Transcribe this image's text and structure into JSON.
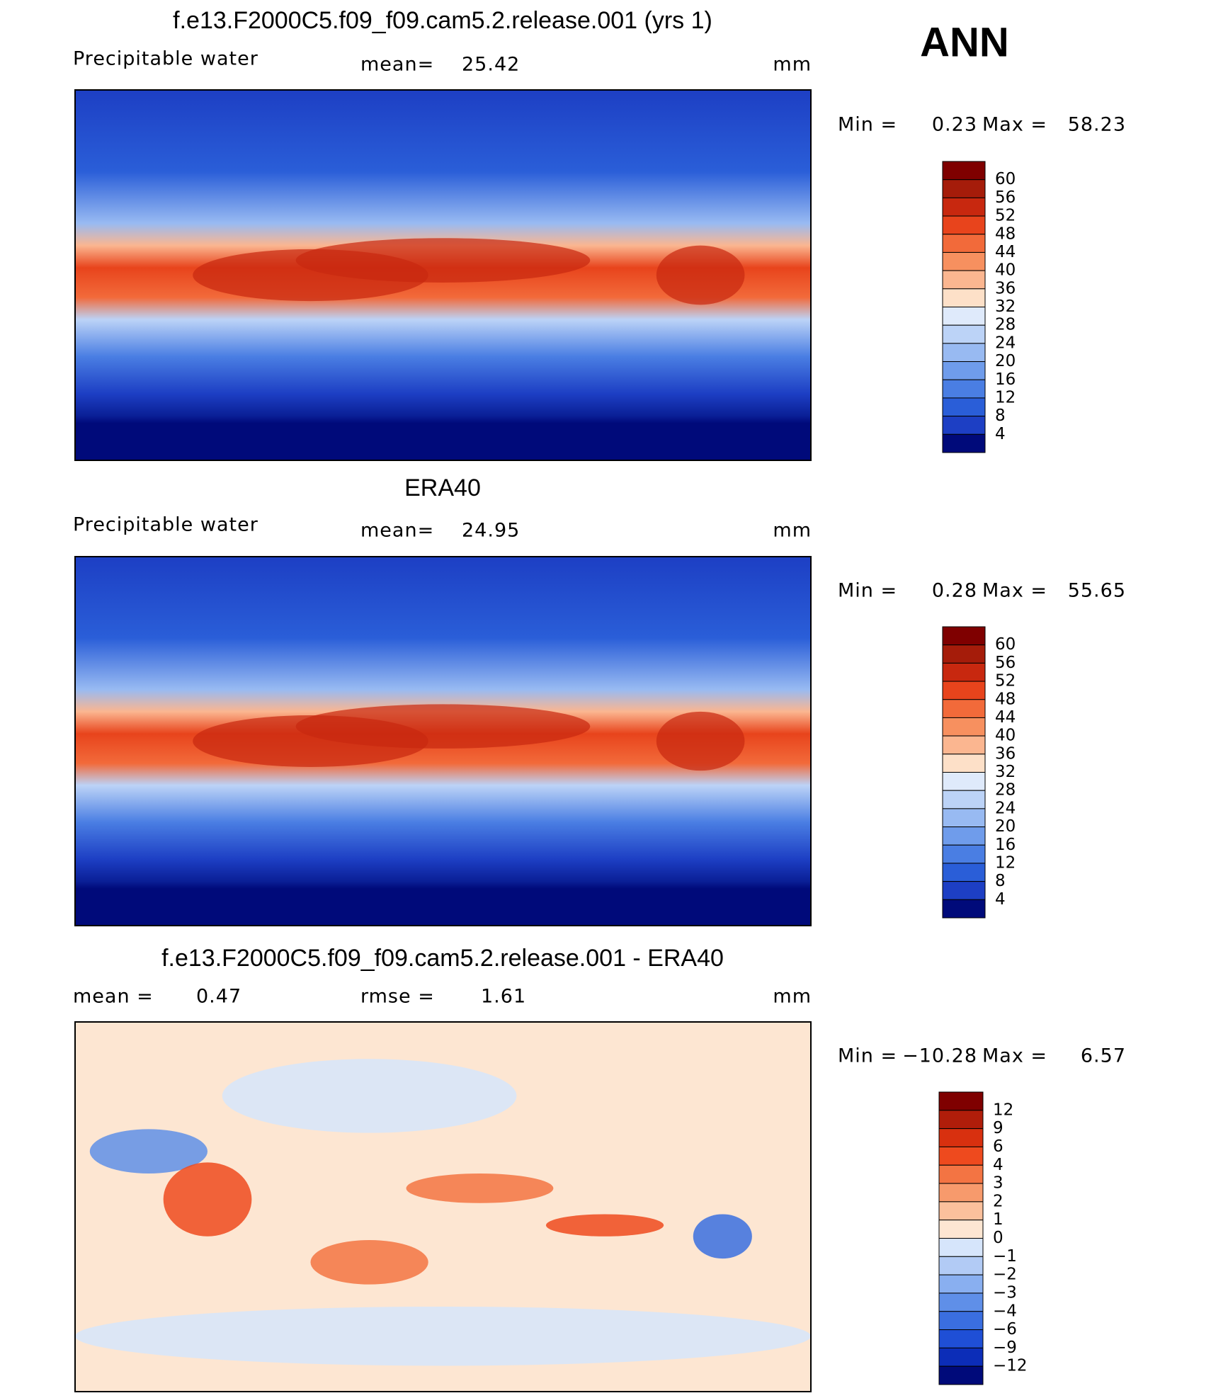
{
  "header": {
    "season": "ANN"
  },
  "panels": [
    {
      "title": "f.e13.F2000C5.f09_f09.cam5.2.release.001 (yrs 1)",
      "left_label": "Precipitable  water",
      "stat1_label": "mean=",
      "stat1_value": "25.42",
      "units": "mm",
      "min_label": "Min  =",
      "min_value": "0.23",
      "max_label": "Max  =",
      "max_value": "58.23",
      "colorbar": {
        "colors": [
          "#7f0000",
          "#a51c0a",
          "#c8280f",
          "#e8441c",
          "#f26a3a",
          "#f7905f",
          "#fbb690",
          "#fde0c8",
          "#dfeafb",
          "#bcd3f7",
          "#98baf2",
          "#6f9ceb",
          "#4a7ee3",
          "#2a5ed8",
          "#1d3fc4",
          "#000a7a"
        ],
        "labels": [
          "60",
          "56",
          "52",
          "48",
          "44",
          "40",
          "36",
          "32",
          "28",
          "24",
          "20",
          "16",
          "12",
          "8",
          "4"
        ]
      }
    },
    {
      "title": "ERA40",
      "left_label": "Precipitable  water",
      "stat1_label": "mean=",
      "stat1_value": "24.95",
      "units": "mm",
      "min_label": "Min  =",
      "min_value": "0.28",
      "max_label": "Max  =",
      "max_value": "55.65",
      "colorbar": {
        "colors": [
          "#7f0000",
          "#a51c0a",
          "#c8280f",
          "#e8441c",
          "#f26a3a",
          "#f7905f",
          "#fbb690",
          "#fde0c8",
          "#dfeafb",
          "#bcd3f7",
          "#98baf2",
          "#6f9ceb",
          "#4a7ee3",
          "#2a5ed8",
          "#1d3fc4",
          "#000a7a"
        ],
        "labels": [
          "60",
          "56",
          "52",
          "48",
          "44",
          "40",
          "36",
          "32",
          "28",
          "24",
          "20",
          "16",
          "12",
          "8",
          "4"
        ]
      }
    },
    {
      "title": "f.e13.F2000C5.f09_f09.cam5.2.release.001 - ERA40",
      "stat1_label": "mean  =",
      "stat1_value": "0.47",
      "stat2_label": "rmse  =",
      "stat2_value": "1.61",
      "units": "mm",
      "min_label": "Min  =",
      "min_value": "−10.28",
      "max_label": "Max  =",
      "max_value": "6.57",
      "colorbar": {
        "colors": [
          "#7f0000",
          "#b01d0a",
          "#d8300f",
          "#ee4a1e",
          "#f37443",
          "#f79a6c",
          "#fbc09c",
          "#fde6d2",
          "#d6e5fb",
          "#b2cbf5",
          "#89aff0",
          "#5f8fe8",
          "#3a6ee0",
          "#1f4fd6",
          "#0c2db8",
          "#000a7a"
        ],
        "labels": [
          "12",
          "9",
          "6",
          "4",
          "3",
          "2",
          "1",
          "0",
          "−1",
          "−2",
          "−3",
          "−4",
          "−6",
          "−9",
          "−12"
        ]
      }
    }
  ]
}
